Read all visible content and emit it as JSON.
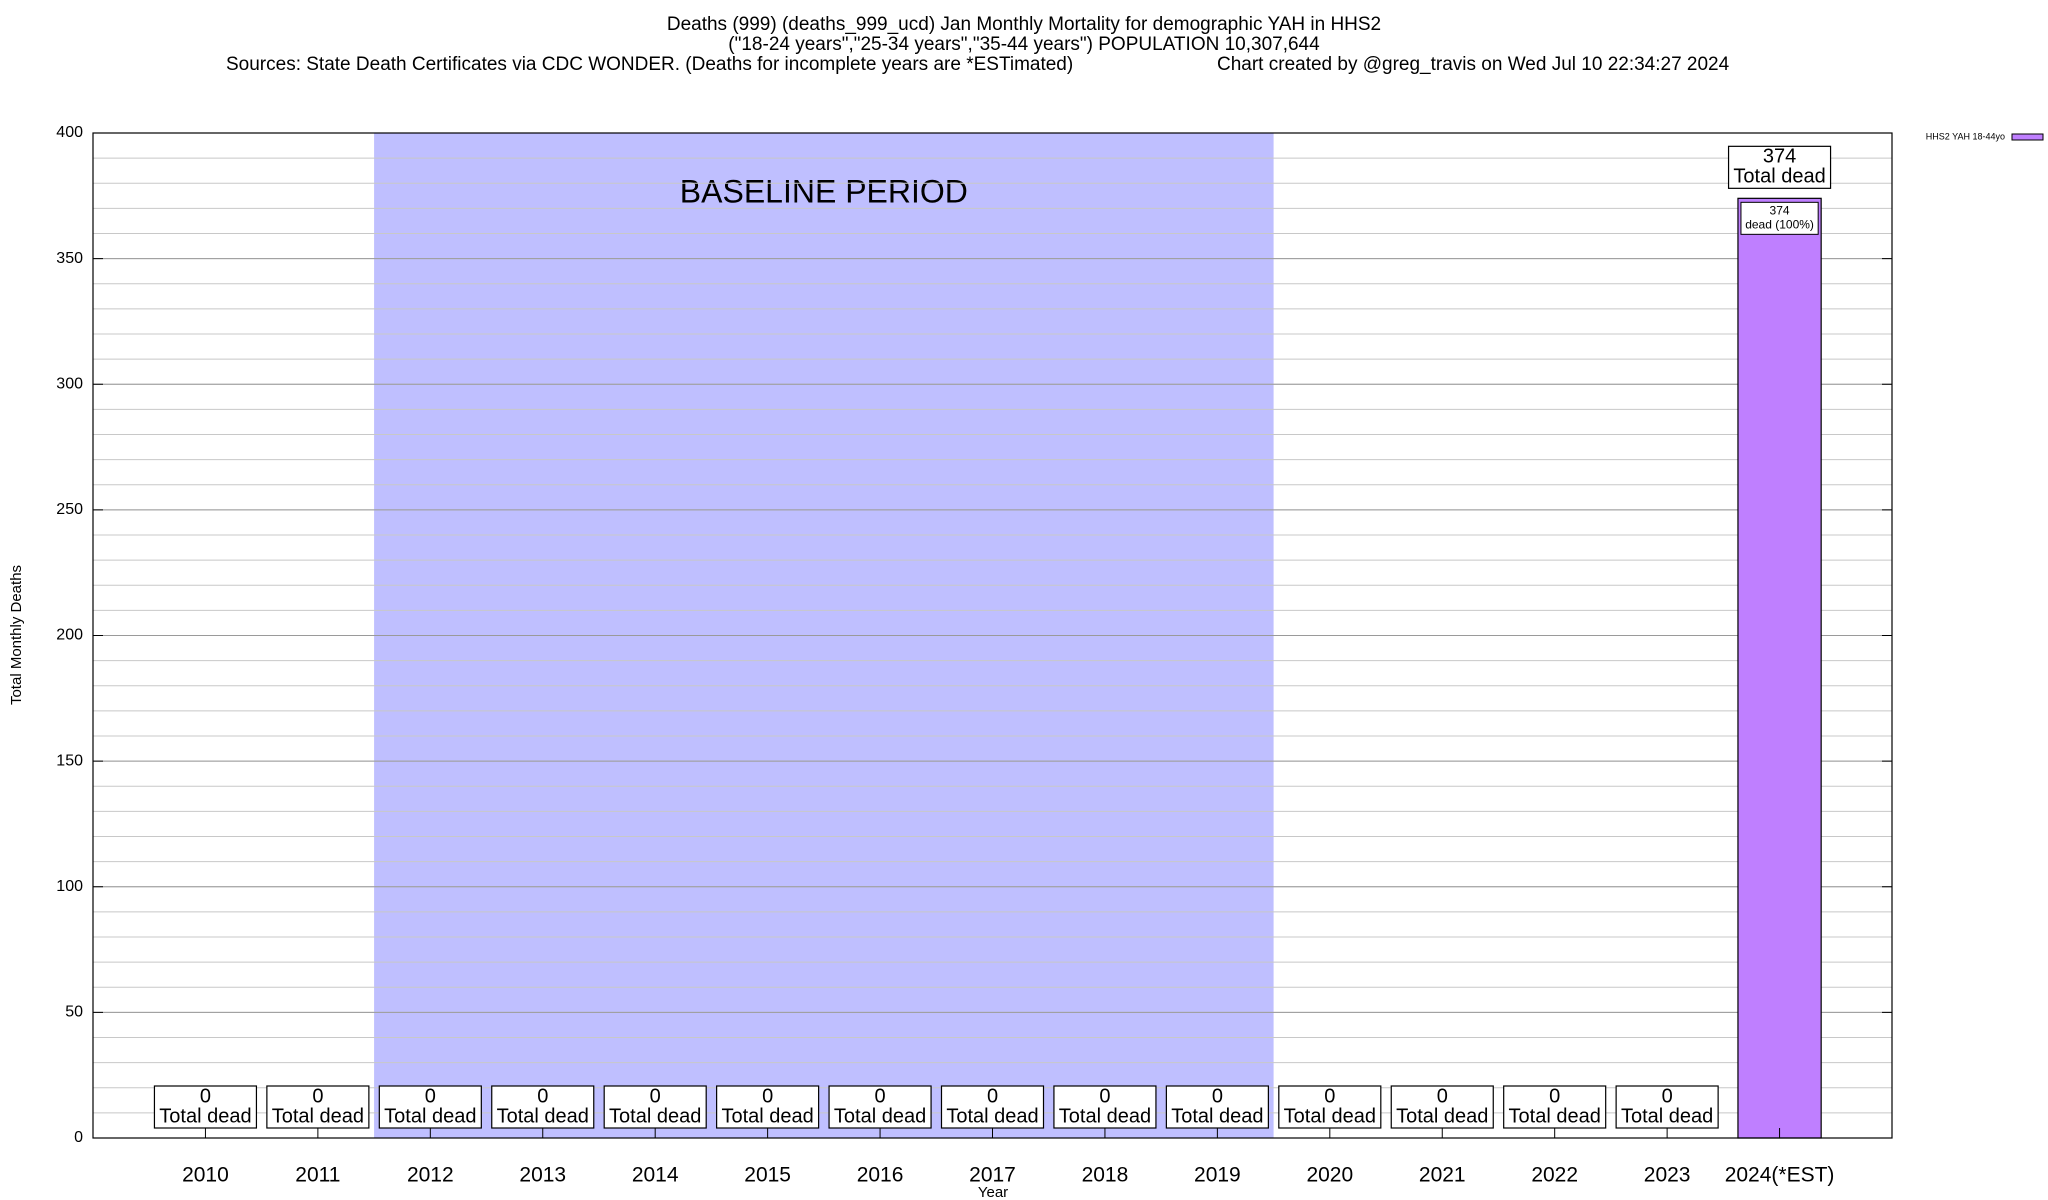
{
  "chart_data": {
    "type": "bar",
    "title": "Deaths (999) (deaths_999_ucd) Jan Monthly Mortality for demographic YAH in HHS2",
    "subtitle": "(\"18-24 years\",\"25-34 years\",\"35-44 years\") POPULATION 10,307,644",
    "source": "Sources: State Death Certificates via CDC WONDER. (Deaths for incomplete years are *ESTimated)",
    "credit": "Chart created by @greg_travis on Wed Jul 10 22:34:27 2024",
    "x_label": "Year",
    "y_label": "Total Monthly Deaths",
    "categories": [
      "2010",
      "2011",
      "2012",
      "2013",
      "2014",
      "2015",
      "2016",
      "2017",
      "2018",
      "2019",
      "2020",
      "2021",
      "2022",
      "2023",
      "2024(*EST)"
    ],
    "series": [
      {
        "name": "HHS2 YAH 18-44yo",
        "color": "#bf7fff",
        "values": [
          0,
          0,
          0,
          0,
          0,
          0,
          0,
          0,
          0,
          0,
          0,
          0,
          0,
          0,
          374
        ],
        "shares": [
          null,
          null,
          null,
          null,
          null,
          null,
          null,
          null,
          null,
          null,
          null,
          null,
          null,
          null,
          100
        ],
        "share_labels": [
          null,
          null,
          null,
          null,
          null,
          null,
          null,
          null,
          null,
          null,
          null,
          null,
          null,
          null,
          "dead (100%)"
        ]
      }
    ],
    "total_label": "Total dead",
    "baseline": {
      "label": "BASELINE PERIOD",
      "start": "2012",
      "end": "2019",
      "color": "#bfbfff"
    },
    "ylim": [
      0,
      400
    ],
    "yticks": [
      0,
      50,
      100,
      150,
      200,
      250,
      300,
      350,
      400
    ],
    "minor_grid_step": 10,
    "grid": true,
    "legend": "top-right"
  }
}
